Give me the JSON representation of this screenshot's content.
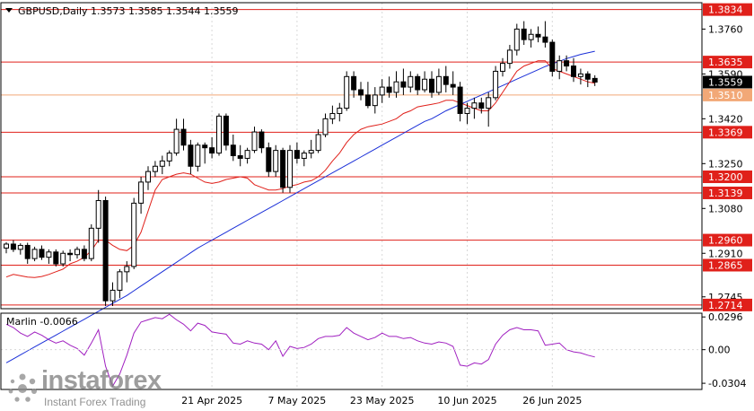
{
  "chart_data": {
    "type": "candlestick",
    "symbol_header": "GBPUSD,Daily  1.3573 1.3585 1.3544 1.3559",
    "price_axis": {
      "ylim": [
        1.27,
        1.386
      ],
      "ticks": [
        "1.3760",
        "1.3590",
        "1.3420",
        "1.3250",
        "1.3080",
        "1.2910",
        "1.2745"
      ],
      "tick_values": [
        1.376,
        1.359,
        1.342,
        1.325,
        1.308,
        1.291,
        1.2745
      ]
    },
    "levels": [
      {
        "value": 1.3834,
        "label": "1.3834",
        "color": "#e0201a"
      },
      {
        "value": 1.3635,
        "label": "1.3635",
        "color": "#e0201a"
      },
      {
        "value": 1.351,
        "label": "1.3510",
        "color": "#f2a877"
      },
      {
        "value": 1.3369,
        "label": "1.3369",
        "color": "#e0201a"
      },
      {
        "value": 1.32,
        "label": "1.3200",
        "color": "#e0201a"
      },
      {
        "value": 1.3139,
        "label": "1.3139",
        "color": "#e0201a"
      },
      {
        "value": 1.296,
        "label": "1.2960",
        "color": "#e0201a"
      },
      {
        "value": 1.2865,
        "label": "1.2865",
        "color": "#e0201a"
      },
      {
        "value": 1.2714,
        "label": "1.2714",
        "color": "#e0201a"
      }
    ],
    "current_price": {
      "value": 1.3559,
      "label": "1.3559"
    },
    "x_ticks": [
      {
        "index": 29,
        "label": "21 Apr 2025"
      },
      {
        "index": 41,
        "label": "7 May 2025"
      },
      {
        "index": 53,
        "label": "23 May 2025"
      },
      {
        "index": 65,
        "label": "10 Jun 2025"
      },
      {
        "index": 77,
        "label": "26 Jun 2025"
      }
    ],
    "candles": [
      [
        1.293,
        1.2952,
        1.291,
        1.2945
      ],
      [
        1.2945,
        1.296,
        1.2915,
        1.2925
      ],
      [
        1.2925,
        1.2948,
        1.2905,
        1.294
      ],
      [
        1.294,
        1.295,
        1.287,
        1.289
      ],
      [
        1.289,
        1.2935,
        1.288,
        1.2925
      ],
      [
        1.2925,
        1.294,
        1.2885,
        1.2895
      ],
      [
        1.2895,
        1.2925,
        1.287,
        1.2915
      ],
      [
        1.2915,
        1.2925,
        1.286,
        1.287
      ],
      [
        1.287,
        1.292,
        1.286,
        1.291
      ],
      [
        1.291,
        1.2925,
        1.288,
        1.2905
      ],
      [
        1.2905,
        1.2935,
        1.289,
        1.2925
      ],
      [
        1.2925,
        1.294,
        1.288,
        1.289
      ],
      [
        1.289,
        1.302,
        1.288,
        1.3005
      ],
      [
        1.3005,
        1.315,
        1.295,
        1.311
      ],
      [
        1.311,
        1.3125,
        1.271,
        1.273
      ],
      [
        1.273,
        1.28,
        1.271,
        1.277
      ],
      [
        1.277,
        1.285,
        1.274,
        1.284
      ],
      [
        1.284,
        1.288,
        1.28,
        1.286
      ],
      [
        1.286,
        1.312,
        1.285,
        1.31
      ],
      [
        1.31,
        1.32,
        1.306,
        1.318
      ],
      [
        1.318,
        1.324,
        1.315,
        1.322
      ],
      [
        1.322,
        1.326,
        1.32,
        1.324
      ],
      [
        1.324,
        1.328,
        1.321,
        1.326
      ],
      [
        1.326,
        1.33,
        1.324,
        1.329
      ],
      [
        1.329,
        1.342,
        1.328,
        1.338
      ],
      [
        1.338,
        1.342,
        1.33,
        1.332
      ],
      [
        1.332,
        1.334,
        1.321,
        1.324
      ],
      [
        1.324,
        1.333,
        1.322,
        1.332
      ],
      [
        1.332,
        1.333,
        1.325,
        1.331
      ],
      [
        1.331,
        1.335,
        1.327,
        1.329
      ],
      [
        1.329,
        1.344,
        1.328,
        1.343
      ],
      [
        1.343,
        1.344,
        1.33,
        1.332
      ],
      [
        1.332,
        1.336,
        1.326,
        1.328
      ],
      [
        1.328,
        1.332,
        1.324,
        1.327
      ],
      [
        1.327,
        1.331,
        1.325,
        1.33
      ],
      [
        1.33,
        1.339,
        1.329,
        1.337
      ],
      [
        1.337,
        1.338,
        1.329,
        1.331
      ],
      [
        1.331,
        1.333,
        1.32,
        1.322
      ],
      [
        1.322,
        1.332,
        1.32,
        1.33
      ],
      [
        1.33,
        1.331,
        1.314,
        1.316
      ],
      [
        1.316,
        1.332,
        1.314,
        1.33
      ],
      [
        1.33,
        1.333,
        1.325,
        1.327
      ],
      [
        1.327,
        1.33,
        1.324,
        1.329
      ],
      [
        1.329,
        1.334,
        1.327,
        1.33
      ],
      [
        1.33,
        1.338,
        1.329,
        1.336
      ],
      [
        1.336,
        1.344,
        1.335,
        1.342
      ],
      [
        1.342,
        1.347,
        1.34,
        1.344
      ],
      [
        1.344,
        1.348,
        1.341,
        1.346
      ],
      [
        1.346,
        1.36,
        1.345,
        1.358
      ],
      [
        1.358,
        1.36,
        1.35,
        1.353
      ],
      [
        1.353,
        1.356,
        1.349,
        1.351
      ],
      [
        1.351,
        1.356,
        1.346,
        1.347
      ],
      [
        1.347,
        1.354,
        1.344,
        1.351
      ],
      [
        1.351,
        1.357,
        1.348,
        1.354
      ],
      [
        1.354,
        1.358,
        1.35,
        1.352
      ],
      [
        1.352,
        1.36,
        1.35,
        1.356
      ],
      [
        1.356,
        1.361,
        1.351,
        1.354
      ],
      [
        1.354,
        1.36,
        1.352,
        1.358
      ],
      [
        1.358,
        1.359,
        1.351,
        1.353
      ],
      [
        1.353,
        1.36,
        1.352,
        1.357
      ],
      [
        1.357,
        1.36,
        1.35,
        1.352
      ],
      [
        1.352,
        1.361,
        1.351,
        1.358
      ],
      [
        1.358,
        1.362,
        1.352,
        1.355
      ],
      [
        1.355,
        1.36,
        1.351,
        1.354
      ],
      [
        1.354,
        1.356,
        1.341,
        1.344
      ],
      [
        1.344,
        1.348,
        1.34,
        1.346
      ],
      [
        1.346,
        1.35,
        1.342,
        1.348
      ],
      [
        1.348,
        1.35,
        1.344,
        1.346
      ],
      [
        1.346,
        1.352,
        1.339,
        1.35
      ],
      [
        1.35,
        1.362,
        1.349,
        1.36
      ],
      [
        1.36,
        1.365,
        1.358,
        1.363
      ],
      [
        1.363,
        1.37,
        1.361,
        1.368
      ],
      [
        1.368,
        1.378,
        1.366,
        1.376
      ],
      [
        1.376,
        1.379,
        1.37,
        1.372
      ],
      [
        1.372,
        1.376,
        1.369,
        1.374
      ],
      [
        1.374,
        1.377,
        1.371,
        1.373
      ],
      [
        1.373,
        1.379,
        1.369,
        1.371
      ],
      [
        1.371,
        1.372,
        1.358,
        1.36
      ],
      [
        1.36,
        1.366,
        1.357,
        1.364
      ],
      [
        1.364,
        1.366,
        1.36,
        1.362
      ],
      [
        1.362,
        1.365,
        1.356,
        1.358
      ],
      [
        1.358,
        1.361,
        1.355,
        1.359
      ],
      [
        1.359,
        1.36,
        1.354,
        1.357
      ],
      [
        1.3573,
        1.3585,
        1.3544,
        1.3559
      ]
    ],
    "ma_fast": [
      1.282,
      1.283,
      1.2825,
      1.282,
      1.2818,
      1.2822,
      1.283,
      1.284,
      1.285,
      1.287,
      1.288,
      1.2895,
      1.292,
      1.296,
      1.296,
      1.294,
      1.2925,
      1.292,
      1.294,
      1.299,
      1.307,
      1.315,
      1.319,
      1.32,
      1.321,
      1.3215,
      1.321,
      1.3195,
      1.318,
      1.3175,
      1.318,
      1.319,
      1.3195,
      1.32,
      1.3195,
      1.317,
      1.316,
      1.315,
      1.315,
      1.3155,
      1.3165,
      1.317,
      1.318,
      1.3185,
      1.32,
      1.3225,
      1.326,
      1.329,
      1.333,
      1.336,
      1.338,
      1.339,
      1.3395,
      1.34,
      1.341,
      1.342,
      1.344,
      1.345,
      1.3465,
      1.347,
      1.3475,
      1.348,
      1.349,
      1.349,
      1.348,
      1.347,
      1.346,
      1.345,
      1.345,
      1.348,
      1.352,
      1.356,
      1.36,
      1.362,
      1.363,
      1.364,
      1.364,
      1.361,
      1.36,
      1.359,
      1.358,
      1.357,
      1.356,
      1.3555
    ],
    "ma_slow": [
      1.2495,
      1.251,
      1.2525,
      1.254,
      1.2555,
      1.257,
      1.2585,
      1.26,
      1.2615,
      1.263,
      1.2645,
      1.266,
      1.2675,
      1.269,
      1.2705,
      1.272,
      1.2735,
      1.275,
      1.2768,
      1.2786,
      1.2804,
      1.2822,
      1.284,
      1.2858,
      1.2876,
      1.2894,
      1.2912,
      1.293,
      1.2945,
      1.296,
      1.2975,
      1.299,
      1.3005,
      1.302,
      1.3035,
      1.305,
      1.3065,
      1.308,
      1.3095,
      1.311,
      1.3125,
      1.314,
      1.3155,
      1.317,
      1.3185,
      1.32,
      1.3215,
      1.323,
      1.3245,
      1.326,
      1.3275,
      1.329,
      1.3305,
      1.332,
      1.3335,
      1.335,
      1.3365,
      1.338,
      1.3395,
      1.341,
      1.342,
      1.3435,
      1.345,
      1.3462,
      1.3474,
      1.3486,
      1.3498,
      1.351,
      1.3522,
      1.3534,
      1.3546,
      1.3558,
      1.357,
      1.3582,
      1.3594,
      1.3606,
      1.3618,
      1.3628,
      1.3638,
      1.3648,
      1.3656,
      1.3664,
      1.367,
      1.3676
    ],
    "indicator": {
      "label": "Marlin -0.0066",
      "ylim": [
        -0.036,
        0.033
      ],
      "ticks": [
        "0.0296",
        "0.00",
        "-0.0304"
      ],
      "tick_values": [
        0.0296,
        0.0,
        -0.0304
      ],
      "color": "#a020c0",
      "values": [
        0.023,
        0.02,
        0.015,
        0.012,
        0.016,
        0.013,
        0.009,
        0.006,
        0.008,
        0.004,
        0.001,
        -0.005,
        0.006,
        0.018,
        -0.015,
        -0.033,
        -0.022,
        -0.005,
        0.015,
        0.025,
        0.027,
        0.029,
        0.028,
        0.032,
        0.027,
        0.023,
        0.017,
        0.024,
        0.022,
        0.016,
        0.015,
        0.014,
        0.006,
        0.005,
        0.008,
        0.006,
        0.005,
        0.0,
        0.008,
        -0.006,
        0.003,
        0.001,
        0.002,
        0.005,
        0.01,
        0.012,
        0.012,
        0.013,
        0.02,
        0.015,
        0.012,
        0.009,
        0.011,
        0.015,
        0.012,
        0.012,
        0.01,
        0.011,
        0.008,
        0.006,
        0.005,
        0.007,
        0.006,
        0.003,
        -0.014,
        -0.015,
        -0.012,
        -0.013,
        -0.009,
        0.005,
        0.013,
        0.018,
        0.02,
        0.018,
        0.018,
        0.017,
        0.004,
        0.005,
        0.006,
        0.0,
        -0.002,
        -0.003,
        -0.005,
        -0.0066
      ]
    },
    "colors": {
      "bull": "#ffffff",
      "bear": "#000000",
      "ma_fast": "#e0201a",
      "ma_slow": "#1a2fd8",
      "grid": "#d8d8d8"
    }
  },
  "watermark": {
    "brand": "instaforex",
    "tagline": "Instant Forex Trading"
  }
}
